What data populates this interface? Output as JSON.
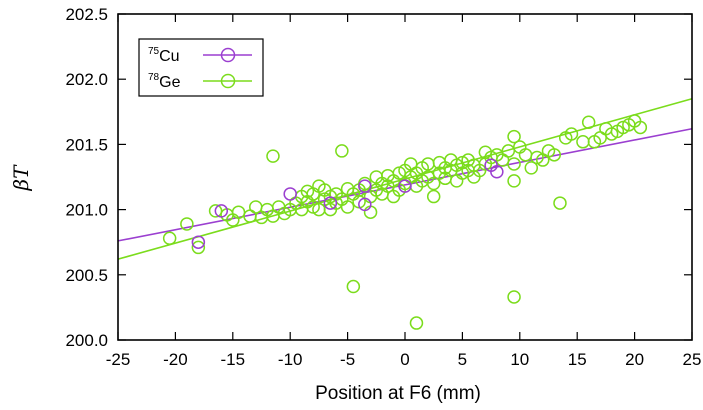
{
  "chart_data": {
    "type": "scatter",
    "title": "",
    "xlabel": "Position at F6 (mm)",
    "ylabel": "βT",
    "xlim": [
      -25,
      25
    ],
    "ylim": [
      200.0,
      202.5
    ],
    "xticks": [
      -25,
      -20,
      -15,
      -10,
      -5,
      0,
      5,
      10,
      15,
      20,
      25
    ],
    "yticks": [
      200.0,
      200.5,
      201.0,
      201.5,
      202.0,
      202.5
    ],
    "xtick_labels": [
      "-25",
      "-20",
      "-15",
      "-10",
      "-5",
      "0",
      "5",
      "10",
      "15",
      "20",
      "25"
    ],
    "ytick_labels": [
      "200.0",
      "200.5",
      "201.0",
      "201.5",
      "202.0",
      "202.5"
    ],
    "legend_position": "top-left",
    "series": [
      {
        "name": "Cu",
        "mass_number": "75",
        "color": "#9b3fd0",
        "marker": "open-circle",
        "fit": {
          "x1": -25,
          "y1": 200.76,
          "x2": 25,
          "y2": 201.62
        },
        "points": [
          {
            "x": -18,
            "y": 200.75
          },
          {
            "x": -16,
            "y": 200.99
          },
          {
            "x": -10,
            "y": 201.12
          },
          {
            "x": -6.5,
            "y": 201.05
          },
          {
            "x": -3.5,
            "y": 201.04
          },
          {
            "x": -3.5,
            "y": 201.18
          },
          {
            "x": 0,
            "y": 201.18
          },
          {
            "x": 7.5,
            "y": 201.34
          },
          {
            "x": 8,
            "y": 201.29
          }
        ]
      },
      {
        "name": "Ge",
        "mass_number": "78",
        "color": "#7bdc1c",
        "marker": "open-circle",
        "fit": {
          "x1": -25,
          "y1": 200.62,
          "x2": 25,
          "y2": 201.85
        },
        "points": [
          {
            "x": -20.5,
            "y": 200.78
          },
          {
            "x": -19,
            "y": 200.89
          },
          {
            "x": -18,
            "y": 200.71
          },
          {
            "x": -16.5,
            "y": 200.99
          },
          {
            "x": -15.5,
            "y": 200.96
          },
          {
            "x": -15,
            "y": 200.92
          },
          {
            "x": -14.5,
            "y": 200.98
          },
          {
            "x": -13.5,
            "y": 200.95
          },
          {
            "x": -13,
            "y": 201.02
          },
          {
            "x": -12.5,
            "y": 200.94
          },
          {
            "x": -12,
            "y": 201.0
          },
          {
            "x": -11.5,
            "y": 200.95
          },
          {
            "x": -11.5,
            "y": 201.41
          },
          {
            "x": -11,
            "y": 201.02
          },
          {
            "x": -10.5,
            "y": 200.97
          },
          {
            "x": -10,
            "y": 201.0
          },
          {
            "x": -9.5,
            "y": 201.05
          },
          {
            "x": -9,
            "y": 201.1
          },
          {
            "x": -9,
            "y": 201.0
          },
          {
            "x": -8.5,
            "y": 201.06
          },
          {
            "x": -8.5,
            "y": 201.14
          },
          {
            "x": -8,
            "y": 201.02
          },
          {
            "x": -8,
            "y": 201.12
          },
          {
            "x": -7.5,
            "y": 201.18
          },
          {
            "x": -7.5,
            "y": 201.0
          },
          {
            "x": -7,
            "y": 201.08
          },
          {
            "x": -7,
            "y": 201.15
          },
          {
            "x": -6.5,
            "y": 201.1
          },
          {
            "x": -6.5,
            "y": 201.0
          },
          {
            "x": -6,
            "y": 201.12
          },
          {
            "x": -6,
            "y": 201.05
          },
          {
            "x": -5.5,
            "y": 201.45
          },
          {
            "x": -5.5,
            "y": 201.08
          },
          {
            "x": -5,
            "y": 201.16
          },
          {
            "x": -5,
            "y": 201.02
          },
          {
            "x": -4.5,
            "y": 201.12
          },
          {
            "x": -4.5,
            "y": 200.41
          },
          {
            "x": -4,
            "y": 201.15
          },
          {
            "x": -4,
            "y": 201.06
          },
          {
            "x": -3.5,
            "y": 201.2
          },
          {
            "x": -3,
            "y": 201.1
          },
          {
            "x": -3,
            "y": 200.98
          },
          {
            "x": -2.5,
            "y": 201.15
          },
          {
            "x": -2.5,
            "y": 201.25
          },
          {
            "x": -2,
            "y": 201.12
          },
          {
            "x": -2,
            "y": 201.2
          },
          {
            "x": -1.5,
            "y": 201.18
          },
          {
            "x": -1.5,
            "y": 201.26
          },
          {
            "x": -1,
            "y": 201.1
          },
          {
            "x": -1,
            "y": 201.22
          },
          {
            "x": -0.5,
            "y": 201.28
          },
          {
            "x": -0.5,
            "y": 201.15
          },
          {
            "x": 0,
            "y": 201.3
          },
          {
            "x": 0,
            "y": 201.2
          },
          {
            "x": 0.5,
            "y": 201.25
          },
          {
            "x": 0.5,
            "y": 201.35
          },
          {
            "x": 1,
            "y": 201.18
          },
          {
            "x": 1,
            "y": 201.28
          },
          {
            "x": 1,
            "y": 200.13
          },
          {
            "x": 1.5,
            "y": 201.22
          },
          {
            "x": 1.5,
            "y": 201.32
          },
          {
            "x": 2,
            "y": 201.25
          },
          {
            "x": 2,
            "y": 201.35
          },
          {
            "x": 2.5,
            "y": 201.2
          },
          {
            "x": 2.5,
            "y": 201.1
          },
          {
            "x": 3,
            "y": 201.28
          },
          {
            "x": 3,
            "y": 201.36
          },
          {
            "x": 3.5,
            "y": 201.24
          },
          {
            "x": 3.5,
            "y": 201.32
          },
          {
            "x": 4,
            "y": 201.3
          },
          {
            "x": 4,
            "y": 201.38
          },
          {
            "x": 4.5,
            "y": 201.22
          },
          {
            "x": 4.5,
            "y": 201.34
          },
          {
            "x": 5,
            "y": 201.28
          },
          {
            "x": 5,
            "y": 201.36
          },
          {
            "x": 5.5,
            "y": 201.3
          },
          {
            "x": 5.5,
            "y": 201.38
          },
          {
            "x": 6,
            "y": 201.25
          },
          {
            "x": 6,
            "y": 201.34
          },
          {
            "x": 6.5,
            "y": 201.3
          },
          {
            "x": 7,
            "y": 201.44
          },
          {
            "x": 7,
            "y": 201.35
          },
          {
            "x": 7.5,
            "y": 201.4
          },
          {
            "x": 8,
            "y": 201.42
          },
          {
            "x": 8.5,
            "y": 201.38
          },
          {
            "x": 9,
            "y": 201.45
          },
          {
            "x": 9.5,
            "y": 201.56
          },
          {
            "x": 9.5,
            "y": 201.22
          },
          {
            "x": 9.5,
            "y": 201.35
          },
          {
            "x": 9.5,
            "y": 200.33
          },
          {
            "x": 10,
            "y": 201.48
          },
          {
            "x": 10.5,
            "y": 201.42
          },
          {
            "x": 11,
            "y": 201.32
          },
          {
            "x": 11.5,
            "y": 201.4
          },
          {
            "x": 12,
            "y": 201.38
          },
          {
            "x": 12.5,
            "y": 201.45
          },
          {
            "x": 13,
            "y": 201.42
          },
          {
            "x": 13.5,
            "y": 201.05
          },
          {
            "x": 14,
            "y": 201.55
          },
          {
            "x": 14.5,
            "y": 201.58
          },
          {
            "x": 15.5,
            "y": 201.52
          },
          {
            "x": 16,
            "y": 201.67
          },
          {
            "x": 16.5,
            "y": 201.52
          },
          {
            "x": 17,
            "y": 201.55
          },
          {
            "x": 17.5,
            "y": 201.62
          },
          {
            "x": 18,
            "y": 201.58
          },
          {
            "x": 18.5,
            "y": 201.6
          },
          {
            "x": 19,
            "y": 201.63
          },
          {
            "x": 19.5,
            "y": 201.65
          },
          {
            "x": 20,
            "y": 201.68
          },
          {
            "x": 20.5,
            "y": 201.63
          }
        ]
      }
    ]
  }
}
